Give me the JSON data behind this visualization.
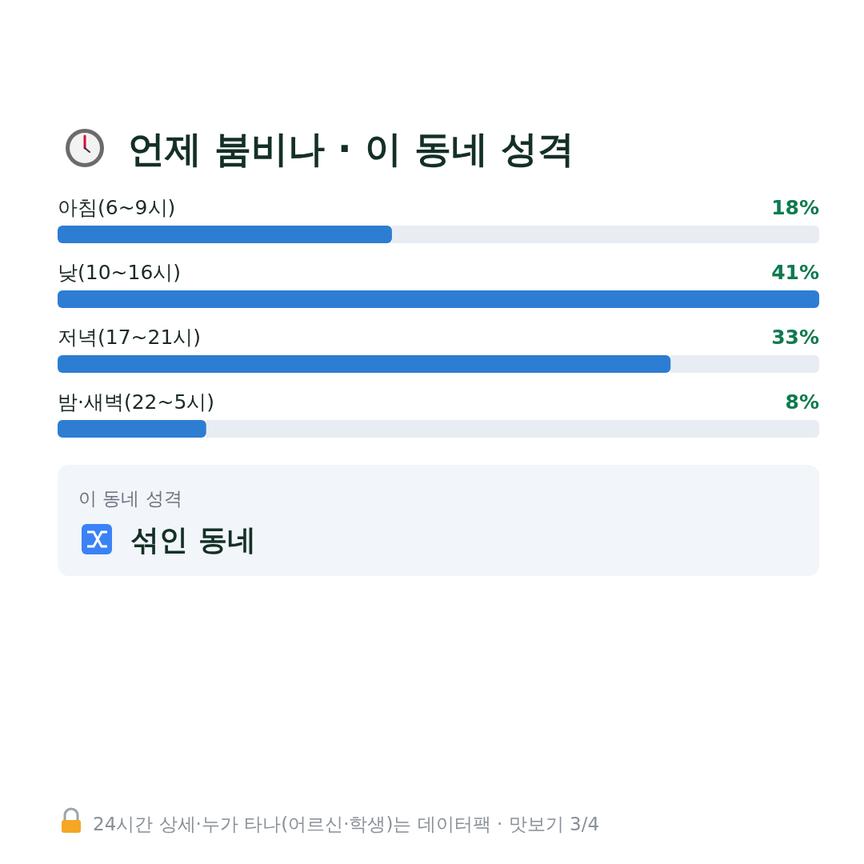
{
  "chart_data": {
    "type": "bar",
    "orientation": "horizontal",
    "title": "언제 붐비나 · 이 동네 성격",
    "categories": [
      "아침(6~9시)",
      "낮(10~16시)",
      "저녁(17~21시)",
      "밤·새벽(22~5시)"
    ],
    "values": [
      18,
      41,
      33,
      8
    ],
    "value_labels": [
      "18%",
      "41%",
      "33%",
      "8%"
    ],
    "color": "#2d7dd2",
    "annotations": [
      "이 동네 성격",
      "섞인 동네",
      "24시간 상세·누가 타나(어르신·학생)는 데이터팩 · 맛보기 3/4"
    ]
  }
}
